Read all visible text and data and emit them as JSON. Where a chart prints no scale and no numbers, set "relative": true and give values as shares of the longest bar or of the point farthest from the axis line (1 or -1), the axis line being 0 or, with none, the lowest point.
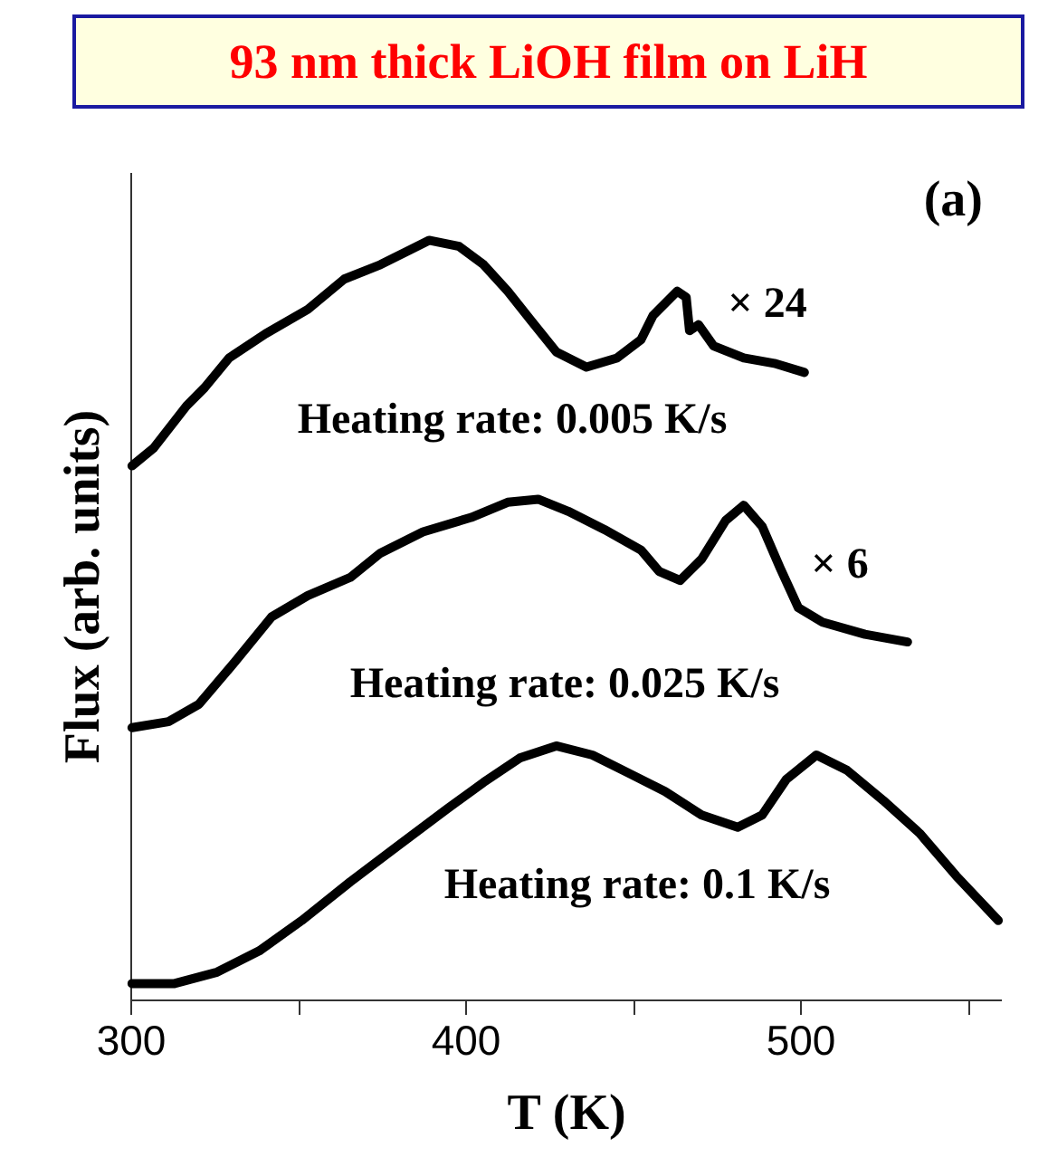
{
  "chart_data": {
    "type": "line",
    "title": "93 nm thick LiOH film on LiH",
    "xlabel": "T (K)",
    "ylabel": "Flux (arb. units)",
    "relative": true,
    "xlim": [
      300,
      560
    ],
    "xticks": [
      300,
      {
        "value": 350,
        "label": null
      },
      400,
      {
        "value": 450,
        "label": null
      },
      500,
      {
        "value": 550,
        "label": null
      }
    ],
    "line_style": "solid",
    "marker": "none",
    "grid": false,
    "annotations": [
      "(a)",
      "× 24",
      "Heating rate: 0.005 K/s",
      "× 6",
      "Heating rate: 0.025 K/s",
      "Heating rate: 0.1 K/s"
    ],
    "series": [
      {
        "color": "#000000",
        "x": [
          300.5,
          306.9,
          316.8,
          322.2,
          329.5,
          340.4,
          353.0,
          363.9,
          374.7,
          383.8,
          389.2,
          398.2,
          405.5,
          412.7,
          419.9,
          427.2,
          436.2,
          445.3,
          452.5,
          456.1,
          463.3,
          466.0,
          467.0,
          469.7,
          474.2,
          483.2,
          492.3,
          501.3
        ],
        "values": [
          0.703,
          0.726,
          0.782,
          0.806,
          0.845,
          0.877,
          0.909,
          0.949,
          0.968,
          0.988,
          1,
          0.992,
          0.968,
          0.933,
          0.893,
          0.853,
          0.833,
          0.845,
          0.869,
          0.901,
          0.933,
          0.925,
          0.881,
          0.889,
          0.861,
          0.845,
          0.838,
          0.826
        ]
      },
      {
        "color": "#000000",
        "x": [
          300.5,
          311.4,
          320.5,
          331.3,
          342.2,
          353.0,
          365.7,
          374.7,
          387.4,
          401.8,
          412.7,
          421.8,
          430.8,
          441.6,
          452.5,
          457.9,
          464.2,
          470.6,
          477.8,
          483.2,
          488.7,
          494.1,
          499.5,
          506.7,
          519.4,
          532.1
        ],
        "values": [
          0.358,
          0.366,
          0.389,
          0.445,
          0.504,
          0.532,
          0.556,
          0.588,
          0.616,
          0.635,
          0.655,
          0.659,
          0.643,
          0.619,
          0.592,
          0.564,
          0.552,
          0.58,
          0.631,
          0.651,
          0.623,
          0.568,
          0.516,
          0.497,
          0.481,
          0.471
        ]
      },
      {
        "color": "#000000",
        "x": [
          300.5,
          313.2,
          325.9,
          338.5,
          351.2,
          365.7,
          380.1,
          394.6,
          405.5,
          416.3,
          427.2,
          438.0,
          448.9,
          459.7,
          470.6,
          481.4,
          488.7,
          495.9,
          504.9,
          514.0,
          524.9,
          535.7,
          546.6,
          559.2
        ],
        "values": [
          0.021,
          0.021,
          0.036,
          0.064,
          0.104,
          0.155,
          0.203,
          0.251,
          0.286,
          0.318,
          0.334,
          0.322,
          0.298,
          0.274,
          0.243,
          0.227,
          0.243,
          0.29,
          0.322,
          0.302,
          0.262,
          0.219,
          0.163,
          0.104
        ]
      }
    ]
  }
}
